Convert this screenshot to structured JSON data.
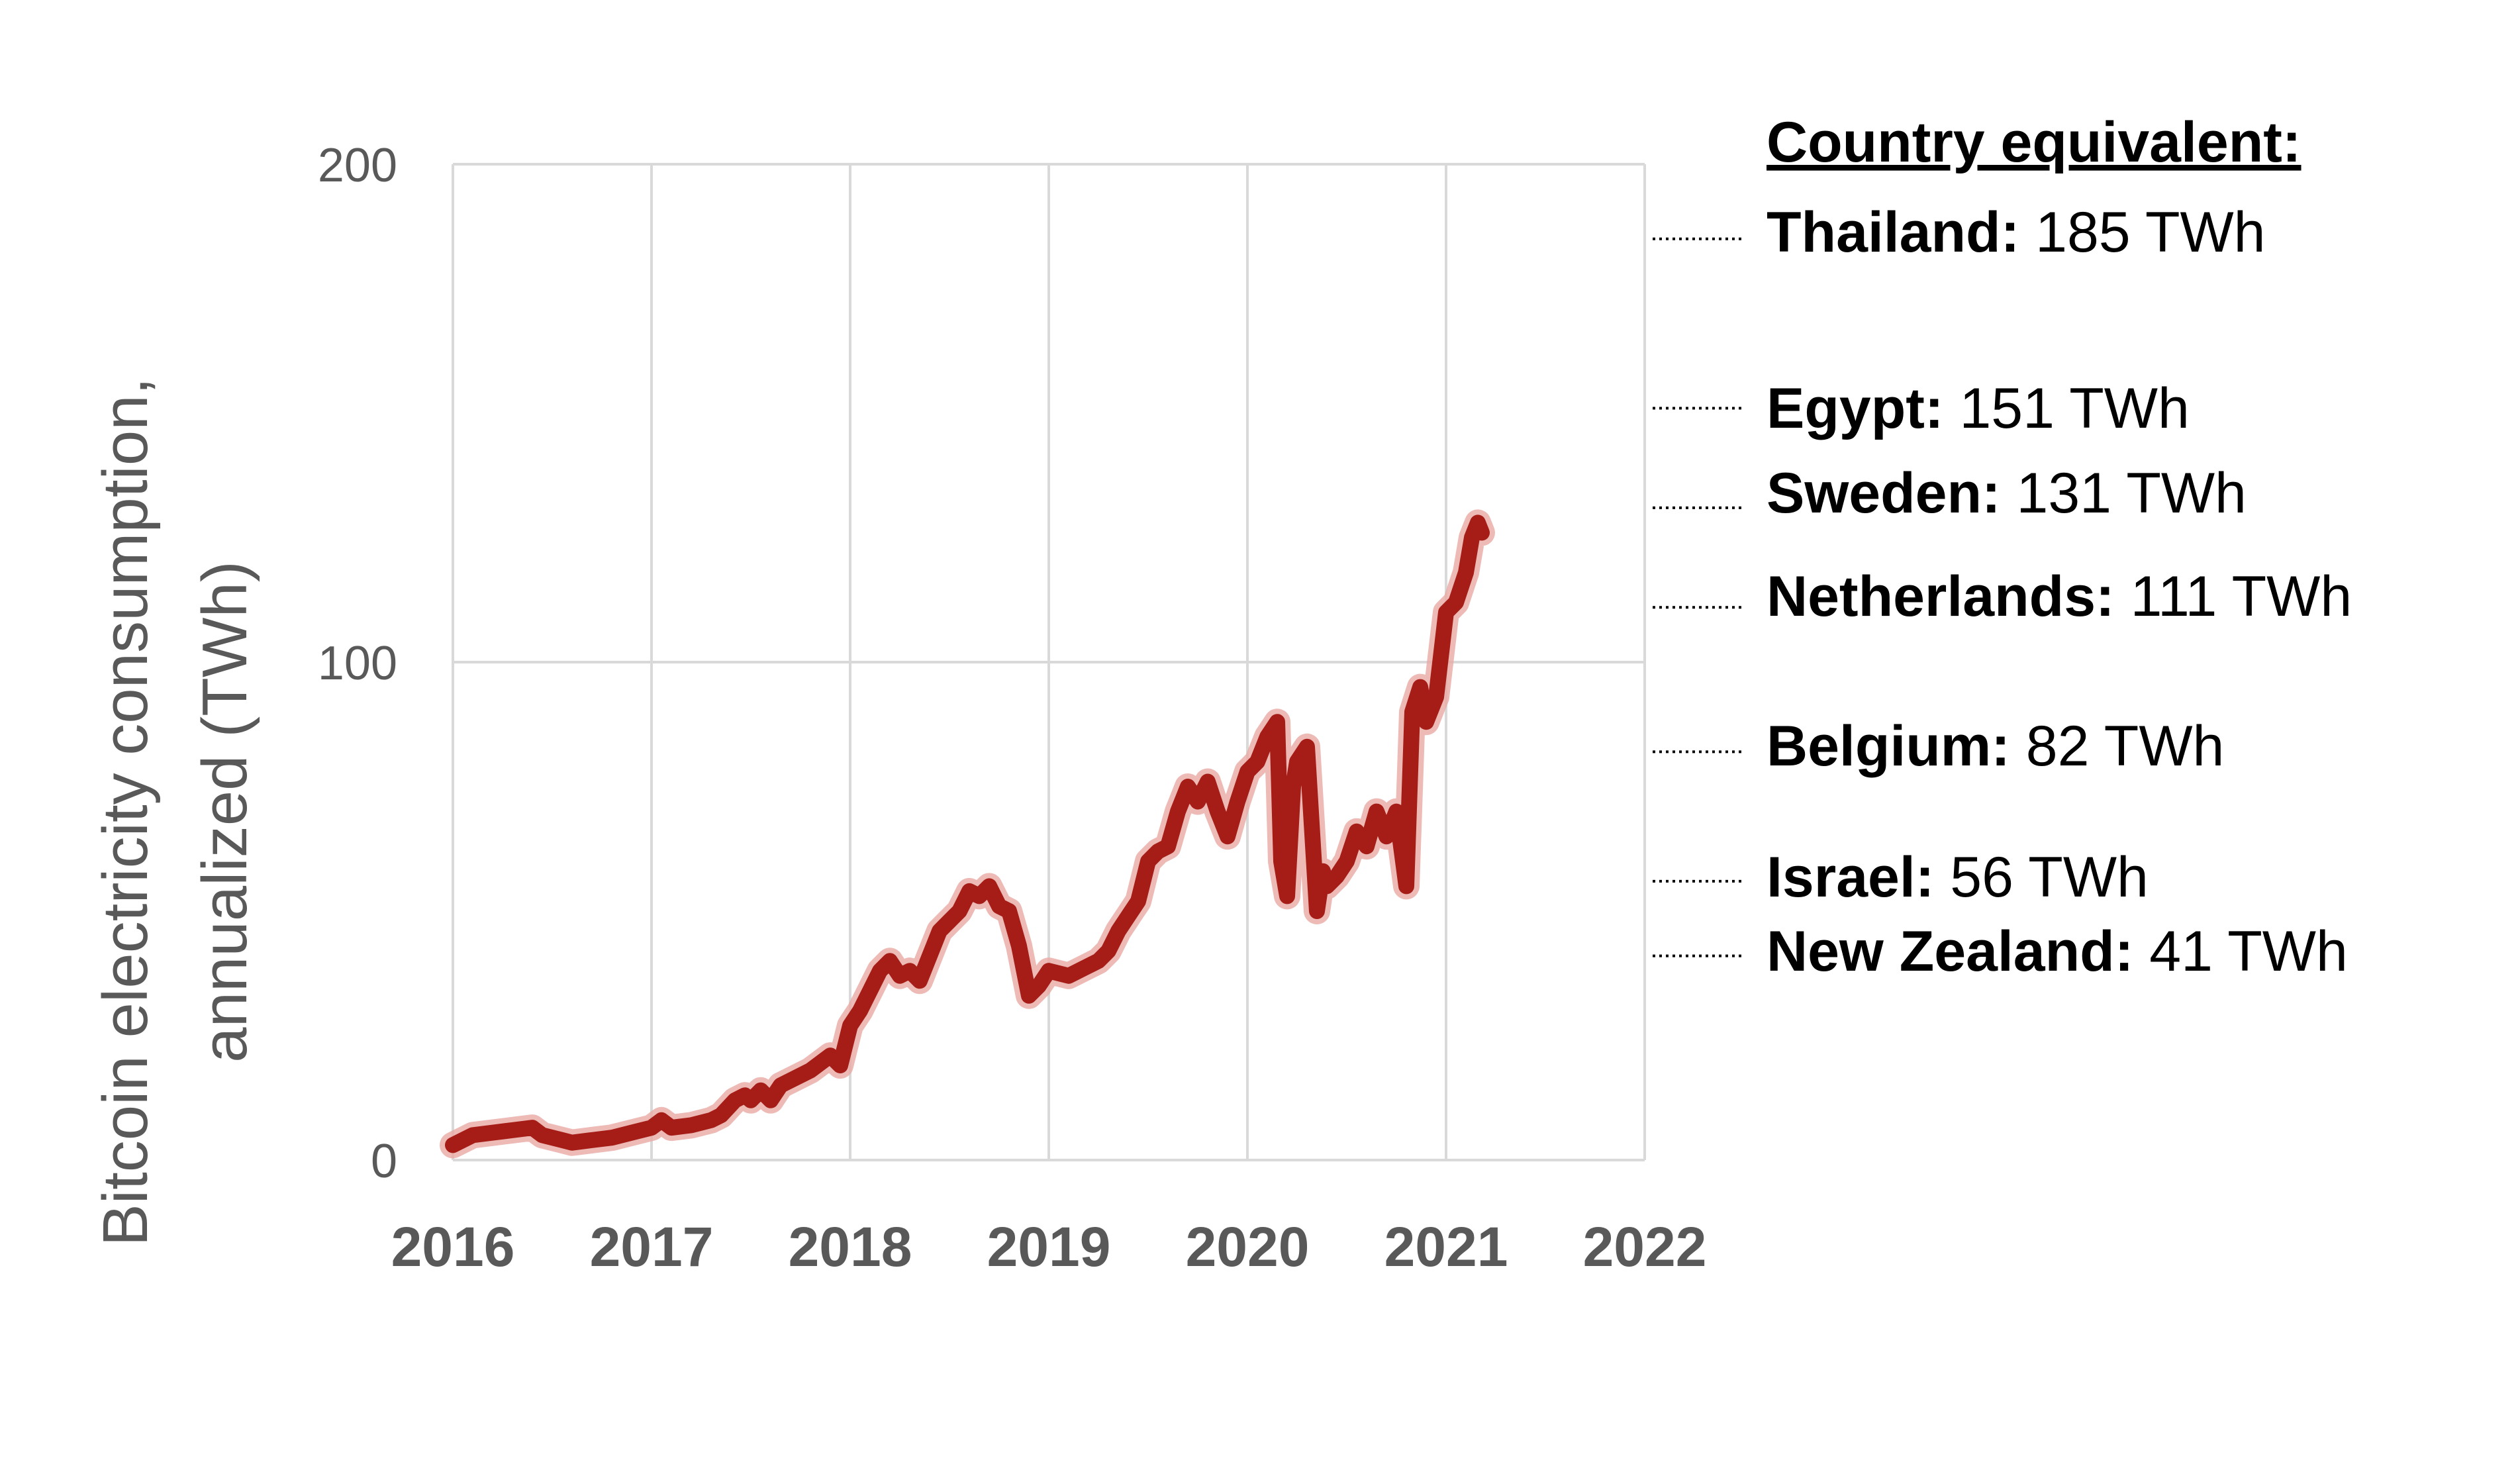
{
  "chart_data": {
    "type": "line",
    "title": "",
    "xlabel": "",
    "ylabel": "Bitcoin electricity consumption, annualized (TWh)",
    "ylabel_lines": [
      "Bitcoin electricity consumption,",
      "annualized (TWh)"
    ],
    "xlim": [
      2016,
      2022
    ],
    "ylim": [
      0,
      200
    ],
    "x_ticks": [
      "2016",
      "2017",
      "2018",
      "2019",
      "2020",
      "2021",
      "2022"
    ],
    "y_ticks": [
      "0",
      "100",
      "200"
    ],
    "grid": true,
    "colors": {
      "series": "#a51d16",
      "series_glow": "#e8a9a4",
      "grid": "#d9d9d9",
      "axis_text": "#595959"
    },
    "series": [
      {
        "x": [
          2016.0,
          2016.1,
          2016.2,
          2016.3,
          2016.4,
          2016.45,
          2016.55,
          2016.6,
          2016.7,
          2016.8,
          2016.9,
          2017.0,
          2017.05,
          2017.1,
          2017.2,
          2017.3,
          2017.35,
          2017.42,
          2017.47,
          2017.5,
          2017.55,
          2017.6,
          2017.65,
          2017.7,
          2017.8,
          2017.9,
          2017.95,
          2018.0,
          2018.05,
          2018.1,
          2018.15,
          2018.2,
          2018.25,
          2018.3,
          2018.35,
          2018.4,
          2018.45,
          2018.5,
          2018.55,
          2018.6,
          2018.65,
          2018.7,
          2018.75,
          2018.8,
          2018.85,
          2018.9,
          2018.95,
          2019.0,
          2019.1,
          2019.2,
          2019.25,
          2019.3,
          2019.35,
          2019.4,
          2019.45,
          2019.5,
          2019.55,
          2019.6,
          2019.65,
          2019.7,
          2019.75,
          2019.8,
          2019.85,
          2019.9,
          2019.95,
          2020.0,
          2020.05,
          2020.1,
          2020.15,
          2020.17,
          2020.2,
          2020.23,
          2020.25,
          2020.3,
          2020.35,
          2020.38,
          2020.4,
          2020.45,
          2020.5,
          2020.55,
          2020.6,
          2020.65,
          2020.7,
          2020.75,
          2020.8,
          2020.83,
          2020.87,
          2020.9,
          2020.95,
          2021.0,
          2021.05,
          2021.1,
          2021.13,
          2021.16,
          2021.18
        ],
        "y": [
          3,
          5,
          5.5,
          6,
          6.5,
          5,
          4,
          3.5,
          4,
          4.5,
          5.5,
          6.5,
          8,
          6.5,
          7,
          8,
          9,
          12,
          13,
          12,
          14,
          12,
          15,
          16,
          18,
          21,
          19,
          27,
          30,
          34,
          38,
          40,
          37,
          38,
          36,
          41,
          46,
          48,
          50,
          54,
          53,
          55,
          51,
          50,
          43,
          33,
          35,
          38,
          37,
          39,
          40,
          42,
          46,
          49,
          52,
          60,
          62,
          63,
          70,
          75,
          72,
          76,
          70,
          65,
          72,
          78,
          80,
          85,
          88,
          60,
          53,
          75,
          80,
          83,
          50,
          58,
          55,
          57,
          60,
          66,
          63,
          70,
          65,
          70,
          55,
          90,
          95,
          88,
          93,
          110,
          112,
          118,
          125,
          128,
          126
        ]
      }
    ],
    "reference_lines": [
      {
        "country": "Thailand:",
        "value_label": "185 TWh",
        "value": 185
      },
      {
        "country": "Egypt:",
        "value_label": "151 TWh",
        "value": 151
      },
      {
        "country": "Sweden:",
        "value_label": "131 TWh",
        "value": 131
      },
      {
        "country": "Netherlands:",
        "value_label": "111 TWh",
        "value": 111
      },
      {
        "country": "Belgium:",
        "value_label": "82 TWh",
        "value": 82
      },
      {
        "country": "Israel:",
        "value_label": "56 TWh",
        "value": 56
      },
      {
        "country": "New Zealand:",
        "value_label": "41 TWh",
        "value": 41
      }
    ],
    "legend_title": "Country equivalent:"
  }
}
